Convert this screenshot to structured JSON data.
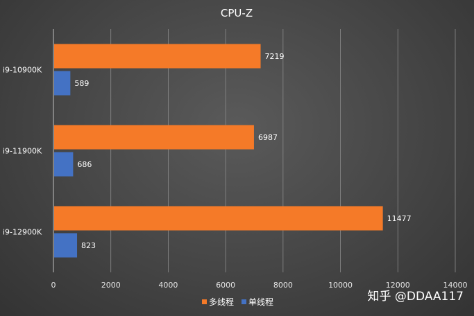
{
  "chart_data": {
    "type": "bar",
    "orientation": "horizontal",
    "title": "CPU-Z",
    "categories": [
      "i9-10900K",
      "i9-11900K",
      "i9-12900K"
    ],
    "series": [
      {
        "name": "多线程",
        "color": "#f57a28",
        "values": [
          7219,
          6987,
          11477
        ]
      },
      {
        "name": "单线程",
        "color": "#4472c4",
        "values": [
          589,
          686,
          823
        ]
      }
    ],
    "xlim": [
      0,
      14000
    ],
    "xticks": [
      0,
      2000,
      4000,
      6000,
      8000,
      10000,
      12000,
      14000
    ],
    "gridlines": true,
    "legend_position": "bottom",
    "data_labels": true
  },
  "watermark": "知乎 @DDAA117"
}
